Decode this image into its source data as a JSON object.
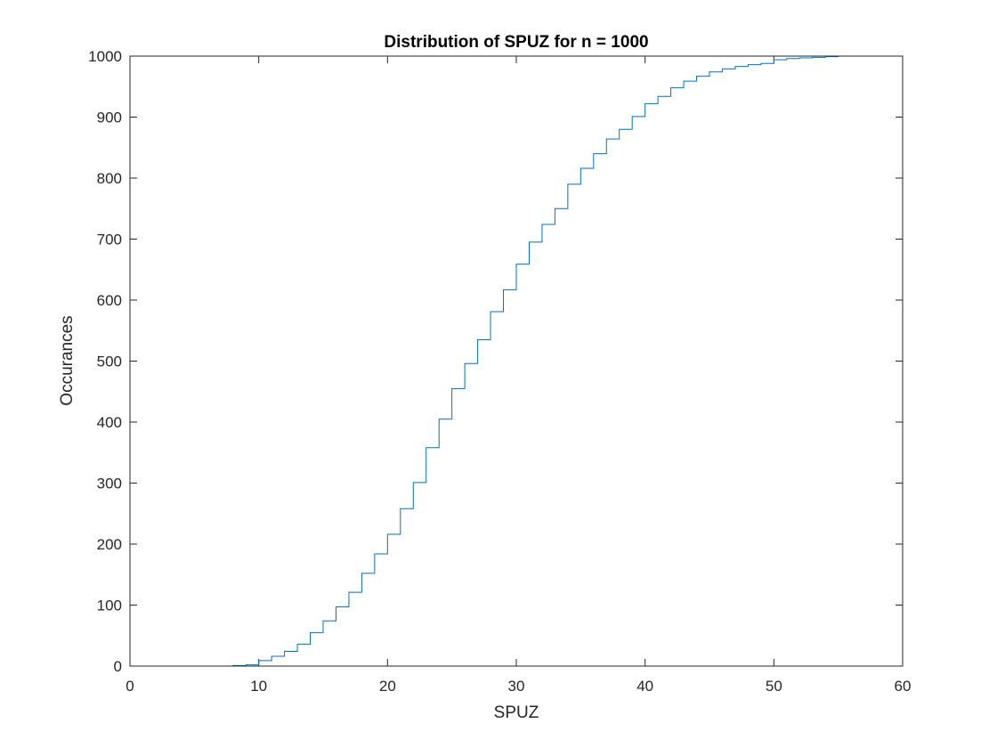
{
  "chart_data": {
    "type": "line",
    "style": "stairs",
    "title": "Distribution of SPUZ for n = 1000",
    "xlabel": "SPUZ",
    "ylabel": "Occurances",
    "xlim": [
      0,
      60
    ],
    "ylim": [
      0,
      1000
    ],
    "xticks": [
      "0",
      "10",
      "20",
      "30",
      "40",
      "50",
      "60"
    ],
    "yticks": [
      "0",
      "100",
      "200",
      "300",
      "400",
      "500",
      "600",
      "700",
      "800",
      "900",
      "1000"
    ],
    "grid": false,
    "box": true,
    "line_color": "#0072BD",
    "series": [
      {
        "x": [
          7,
          8,
          9,
          10,
          11,
          12,
          13,
          14,
          15,
          16,
          17,
          18,
          19,
          20,
          21,
          22,
          23,
          24,
          25,
          26,
          27,
          28,
          29,
          30,
          31,
          32,
          33,
          34,
          35,
          36,
          37,
          38,
          39,
          40,
          41,
          42,
          43,
          44,
          45,
          46,
          47,
          48,
          49,
          50,
          51,
          52,
          53,
          54,
          55,
          56,
          57,
          58
        ],
        "y": [
          0,
          1,
          2,
          9,
          16,
          24,
          36,
          55,
          74,
          97,
          121,
          152,
          184,
          216,
          258,
          301,
          358,
          405,
          455,
          496,
          535,
          581,
          617,
          659,
          695,
          724,
          750,
          790,
          816,
          840,
          864,
          880,
          901,
          922,
          934,
          948,
          959,
          967,
          974,
          979,
          983,
          986,
          988,
          994,
          996,
          997,
          998,
          999,
          1000,
          1000,
          1000,
          1000
        ]
      }
    ]
  }
}
